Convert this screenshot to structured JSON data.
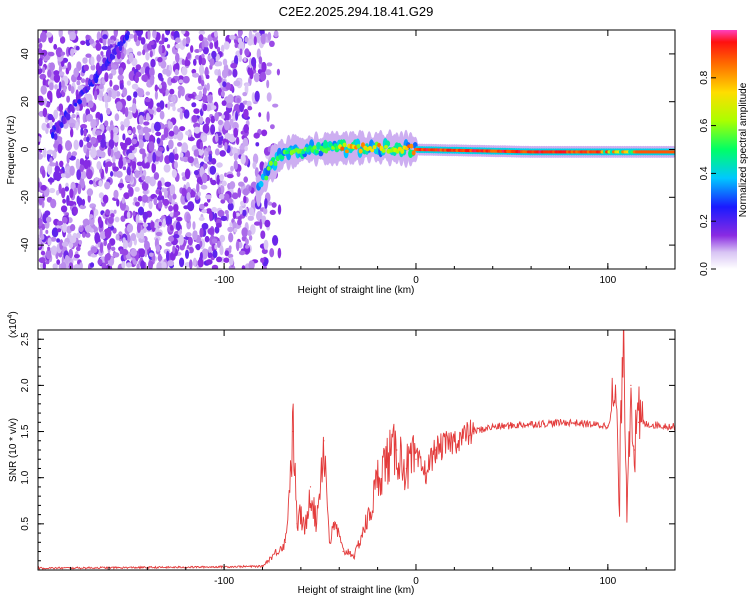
{
  "title": "C2E2.2025.294.18.41.G29",
  "chart_data": [
    {
      "type": "heatmap",
      "xlabel": "Height of straight line (km)",
      "ylabel": "Frequency (Hz)",
      "xlim": [
        -197,
        135
      ],
      "ylim": [
        -50,
        50
      ],
      "xticks": [
        -100,
        0,
        100
      ],
      "yticks": [
        -40,
        -20,
        0,
        20,
        40
      ],
      "colorbar": {
        "label": "Normalized spectral amplitude",
        "range": [
          0,
          1
        ],
        "ticks": [
          "0.0",
          "0.2",
          "0.4",
          "0.6",
          "0.8"
        ]
      },
      "features": [
        {
          "name": "noise",
          "x_range": [
            -197,
            -80
          ],
          "amplitude": 0.2
        },
        {
          "name": "chirp",
          "x_start": -190,
          "y_start": 6,
          "x_end": -150,
          "y_end": 48,
          "amplitude": 0.3
        },
        {
          "name": "carrier_track",
          "points": [
            [
              -80,
              -14
            ],
            [
              -75,
              -6
            ],
            [
              -70,
              -2
            ],
            [
              -60,
              0
            ],
            [
              -40,
              0.5
            ],
            [
              -20,
              1
            ],
            [
              0,
              0
            ],
            [
              60,
              -1
            ],
            [
              135,
              -1
            ]
          ],
          "amplitude": 0.95
        }
      ]
    },
    {
      "type": "line",
      "xlabel": "Height of straight line (km)",
      "ylabel": "SNR (10 * v/v)",
      "y_multiplier": "(x10",
      "y_multiplier_exp": "4",
      "y_multiplier_close": ")",
      "xlim": [
        -197,
        135
      ],
      "ylim": [
        0,
        2.6
      ],
      "xticks": [
        -100,
        0,
        100
      ],
      "yticks": [
        "0.5",
        "1.0",
        "1.5",
        "2.0",
        "2.5"
      ],
      "series": [
        {
          "name": "SNR",
          "color": "#e33b3b",
          "x": [
            -197,
            -120,
            -80,
            -68,
            -64,
            -62,
            -60,
            -58,
            -55,
            -52,
            -48,
            -45,
            -42,
            -38,
            -35,
            -32,
            -28,
            -24,
            -20,
            -15,
            -10,
            -5,
            0,
            5,
            10,
            20,
            30,
            40,
            60,
            80,
            100,
            104,
            106,
            108,
            110,
            112,
            114,
            116,
            120,
            135
          ],
          "y": [
            0.02,
            0.03,
            0.04,
            0.3,
            1.5,
            0.5,
            0.6,
            0.4,
            0.9,
            0.5,
            1.4,
            0.3,
            0.5,
            0.2,
            0.2,
            0.15,
            0.4,
            0.6,
            1.0,
            1.2,
            1.3,
            1.1,
            1.2,
            1.05,
            1.3,
            1.4,
            1.5,
            1.55,
            1.58,
            1.6,
            1.56,
            1.9,
            0.7,
            2.6,
            0.8,
            2.0,
            1.3,
            1.6,
            1.58,
            1.55
          ]
        }
      ]
    }
  ]
}
